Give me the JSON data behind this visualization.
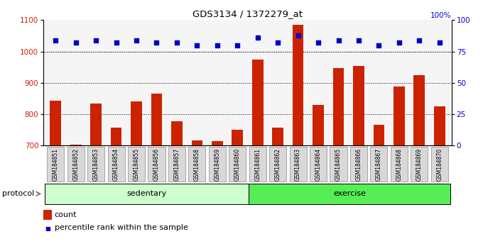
{
  "title": "GDS3134 / 1372279_at",
  "categories": [
    "GSM184851",
    "GSM184852",
    "GSM184853",
    "GSM184854",
    "GSM184855",
    "GSM184856",
    "GSM184857",
    "GSM184858",
    "GSM184859",
    "GSM184860",
    "GSM184861",
    "GSM184862",
    "GSM184863",
    "GSM184864",
    "GSM184865",
    "GSM184866",
    "GSM184867",
    "GSM184868",
    "GSM184869",
    "GSM184870"
  ],
  "bar_values": [
    843,
    703,
    833,
    757,
    840,
    866,
    778,
    716,
    715,
    751,
    974,
    757,
    1085,
    830,
    947,
    953,
    766,
    888,
    924,
    826
  ],
  "percentile_values": [
    84,
    82,
    84,
    82,
    84,
    82,
    82,
    80,
    80,
    80,
    86,
    82,
    88,
    82,
    84,
    84,
    80,
    82,
    84,
    82
  ],
  "bar_color": "#cc2200",
  "dot_color": "#0000cc",
  "ylim_left": [
    700,
    1100
  ],
  "ylim_right": [
    0,
    100
  ],
  "yticks_left": [
    700,
    800,
    900,
    1000,
    1100
  ],
  "yticks_right": [
    0,
    25,
    50,
    75,
    100
  ],
  "grid_values": [
    800,
    900,
    1000
  ],
  "protocol_label": "protocol",
  "sedentary_label": "sedentary",
  "exercise_label": "exercise",
  "legend_count": "count",
  "legend_percentile": "percentile rank within the sample",
  "bg_plot": "#f5f5f5",
  "bg_sedentary": "#ccffcc",
  "bg_exercise": "#55ee55",
  "tick_bg": "#d8d8d8",
  "bar_width": 0.55
}
